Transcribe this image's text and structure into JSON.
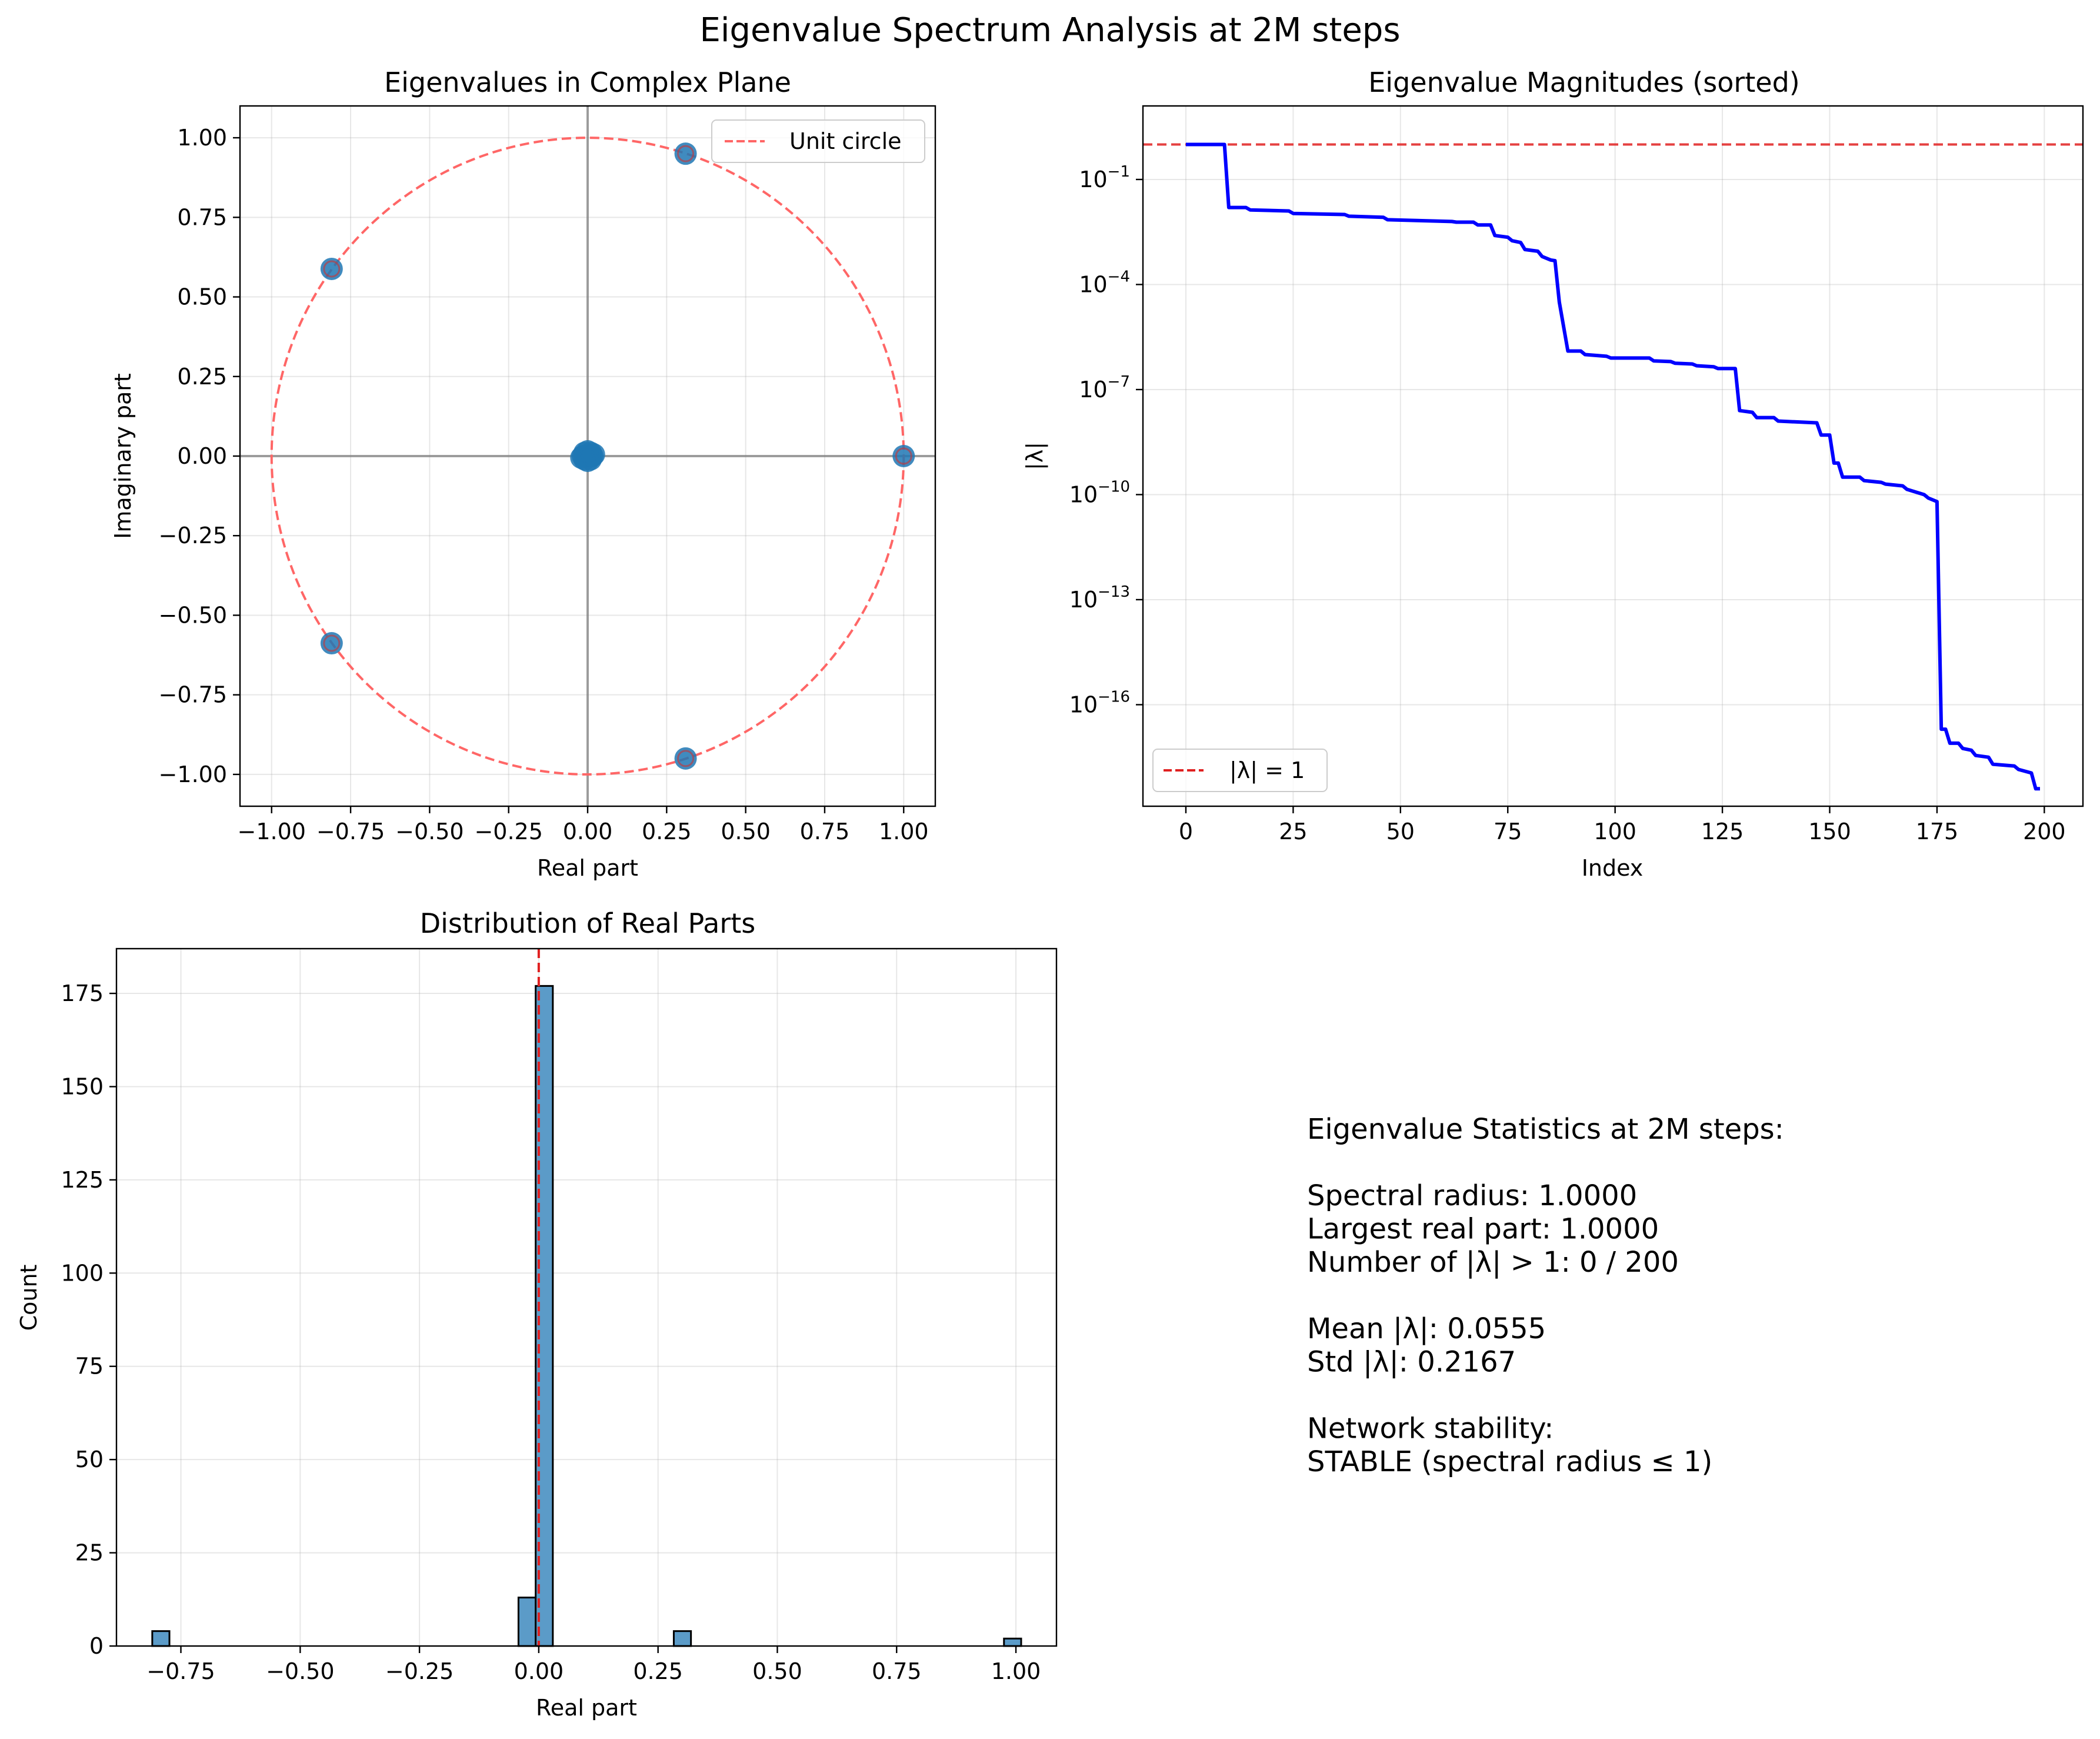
{
  "figure_title": "Eigenvalue Spectrum Analysis at 2M steps",
  "colors": {
    "scatter": "#1f77b4",
    "unit_circle": "#ff6666",
    "reference_line": "#e02020",
    "magnitude_line": "#0000ff",
    "bars": "#5b9bc8",
    "axis_lines": "#808080"
  },
  "chart_data": [
    {
      "type": "scatter",
      "title": "Eigenvalues in Complex Plane",
      "xlabel": "Real part",
      "ylabel": "Imaginary part",
      "xlim": [
        -1.1,
        1.1
      ],
      "ylim": [
        -1.1,
        1.1
      ],
      "xticks": [
        -1.0,
        -0.75,
        -0.5,
        -0.25,
        0.0,
        0.25,
        0.5,
        0.75,
        1.0
      ],
      "xtick_labels": [
        "−1.00",
        "−0.75",
        "−0.50",
        "−0.25",
        "0.00",
        "0.25",
        "0.50",
        "0.75",
        "1.00"
      ],
      "yticks": [
        1.0,
        0.75,
        0.5,
        0.25,
        0.0,
        -0.25,
        -0.5,
        -0.75,
        -1.0
      ],
      "ytick_labels": [
        "1.00",
        "0.75",
        "0.50",
        "0.25",
        "0.00",
        "−0.25",
        "−0.50",
        "−0.75",
        "−1.00"
      ],
      "grid": true,
      "legend": {
        "position": "top-right",
        "entries": [
          "Unit circle"
        ]
      },
      "points": [
        [
          1.0,
          0.0
        ],
        [
          0.31,
          0.95
        ],
        [
          0.31,
          -0.95
        ],
        [
          -0.81,
          0.588
        ],
        [
          -0.81,
          -0.588
        ],
        [
          0.0,
          0.0
        ],
        [
          0.01,
          0.01
        ],
        [
          -0.01,
          0.01
        ],
        [
          0.01,
          -0.01
        ],
        [
          -0.01,
          -0.01
        ],
        [
          0.015,
          0.0
        ],
        [
          -0.015,
          0.0
        ],
        [
          0.0,
          0.015
        ],
        [
          0.0,
          -0.015
        ],
        [
          0.02,
          0.005
        ],
        [
          -0.02,
          -0.005
        ]
      ],
      "reference": "unit circle (radius 1), axes at x = 0 and y = 0"
    },
    {
      "type": "line",
      "title": "Eigenvalue Magnitudes (sorted)",
      "xlabel": "Index",
      "ylabel": "|λ|",
      "yscale": "log",
      "xlim": [
        -10,
        209
      ],
      "ylim_log10": [
        -18.9,
        1.1
      ],
      "xticks": [
        0,
        25,
        50,
        75,
        100,
        125,
        150,
        175,
        200
      ],
      "ytick_exponents": [
        -1,
        -4,
        -7,
        -10,
        -13,
        -16
      ],
      "grid": true,
      "legend": {
        "position": "bottom-left",
        "entries": [
          "|λ| = 1"
        ]
      },
      "reference_line_y": 1,
      "series_log10": [
        [
          0,
          0.0
        ],
        [
          9,
          0.0
        ],
        [
          10,
          -1.8
        ],
        [
          14,
          -1.8
        ],
        [
          15,
          -1.87
        ],
        [
          24,
          -1.9
        ],
        [
          25,
          -1.97
        ],
        [
          37,
          -2.0
        ],
        [
          38,
          -2.05
        ],
        [
          46,
          -2.08
        ],
        [
          47,
          -2.15
        ],
        [
          62,
          -2.2
        ],
        [
          63,
          -2.22
        ],
        [
          67,
          -2.22
        ],
        [
          68,
          -2.3
        ],
        [
          71,
          -2.3
        ],
        [
          72,
          -2.6
        ],
        [
          75,
          -2.65
        ],
        [
          76,
          -2.75
        ],
        [
          78,
          -2.8
        ],
        [
          79,
          -3.0
        ],
        [
          82,
          -3.05
        ],
        [
          83,
          -3.2
        ],
        [
          85,
          -3.3
        ],
        [
          86,
          -3.32
        ],
        [
          87,
          -4.5
        ],
        [
          89,
          -5.9
        ],
        [
          92,
          -5.9
        ],
        [
          93,
          -6.0
        ],
        [
          98,
          -6.05
        ],
        [
          99,
          -6.1
        ],
        [
          108,
          -6.1
        ],
        [
          109,
          -6.18
        ],
        [
          113,
          -6.2
        ],
        [
          114,
          -6.25
        ],
        [
          118,
          -6.27
        ],
        [
          119,
          -6.32
        ],
        [
          123,
          -6.35
        ],
        [
          124,
          -6.4
        ],
        [
          128,
          -6.4
        ],
        [
          129,
          -7.6
        ],
        [
          132,
          -7.65
        ],
        [
          133,
          -7.8
        ],
        [
          137,
          -7.8
        ],
        [
          138,
          -7.9
        ],
        [
          147,
          -7.95
        ],
        [
          148,
          -8.3
        ],
        [
          150,
          -8.3
        ],
        [
          151,
          -9.1
        ],
        [
          152,
          -9.1
        ],
        [
          153,
          -9.5
        ],
        [
          157,
          -9.5
        ],
        [
          158,
          -9.6
        ],
        [
          162,
          -9.65
        ],
        [
          163,
          -9.7
        ],
        [
          167,
          -9.75
        ],
        [
          168,
          -9.85
        ],
        [
          172,
          -10.0
        ],
        [
          173,
          -10.1
        ],
        [
          175,
          -10.2
        ],
        [
          176,
          -16.7
        ],
        [
          177,
          -16.7
        ],
        [
          178,
          -17.1
        ],
        [
          180,
          -17.1
        ],
        [
          181,
          -17.25
        ],
        [
          183,
          -17.3
        ],
        [
          184,
          -17.45
        ],
        [
          187,
          -17.5
        ],
        [
          188,
          -17.7
        ],
        [
          193,
          -17.75
        ],
        [
          194,
          -17.85
        ],
        [
          197,
          -17.95
        ],
        [
          198,
          -18.4
        ],
        [
          199,
          -18.4
        ]
      ]
    },
    {
      "type": "bar",
      "title": "Distribution of Real Parts",
      "xlabel": "Real part",
      "ylabel": "Count",
      "xlim": [
        -0.885,
        1.085
      ],
      "ylim": [
        0,
        187
      ],
      "xticks": [
        -0.75,
        -0.5,
        -0.25,
        0.0,
        0.25,
        0.5,
        0.75,
        1.0
      ],
      "xtick_labels": [
        "−0.75",
        "−0.50",
        "−0.25",
        "0.00",
        "0.25",
        "0.50",
        "0.75",
        "1.00"
      ],
      "yticks": [
        0,
        25,
        50,
        75,
        100,
        125,
        150,
        175
      ],
      "grid": true,
      "reference_line_x": 0.0,
      "bins": [
        {
          "center": -0.792,
          "count": 4
        },
        {
          "center": -0.0245,
          "count": 13
        },
        {
          "center": 0.0115,
          "count": 177
        },
        {
          "center": 0.301,
          "count": 4
        },
        {
          "center": 0.993,
          "count": 2
        }
      ],
      "bin_width": 0.036
    }
  ],
  "stats_text": [
    "Eigenvalue Statistics at 2M steps:",
    "",
    "Spectral radius: 1.0000",
    "Largest real part: 1.0000",
    "Number of |λ| > 1: 0 / 200",
    "",
    "Mean |λ|: 0.0555",
    "Std |λ|: 0.2167",
    "",
    "Network stability:",
    "STABLE (spectral radius ≤ 1)"
  ]
}
